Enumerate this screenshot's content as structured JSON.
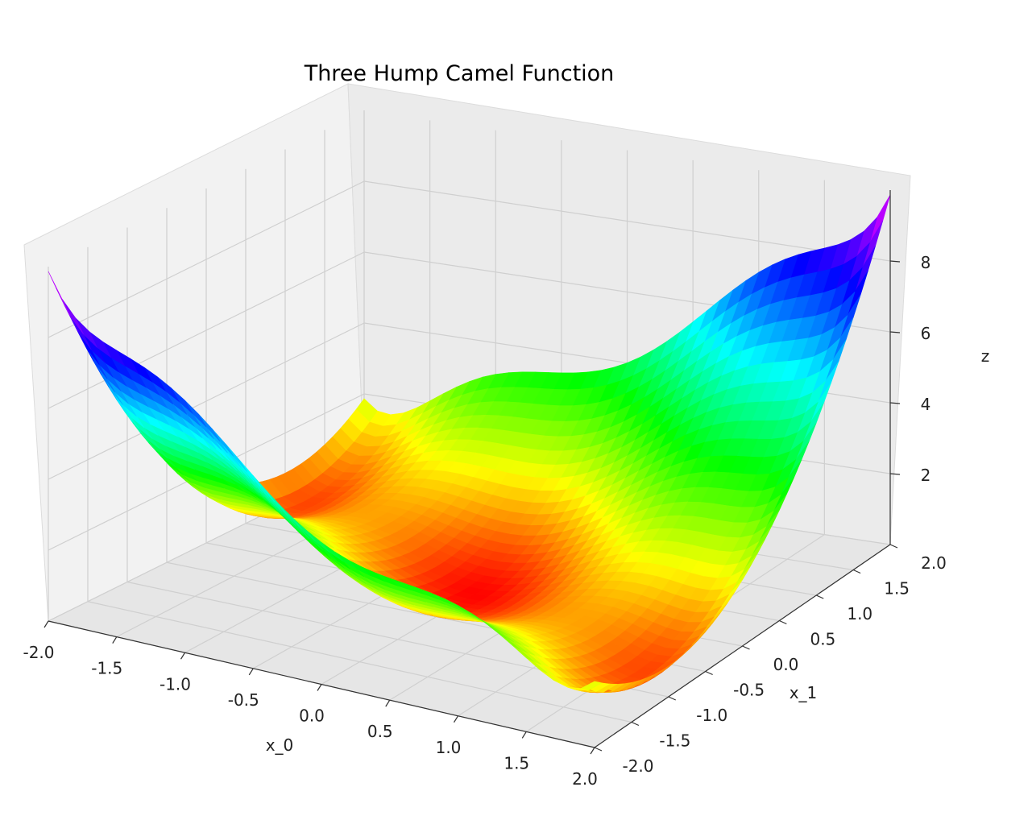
{
  "chart_data": {
    "type": "surface",
    "title": "Three Hump Camel Function",
    "function": "z = 2*x_0^2 - 1.05*x_0^4 + x_0^6/6 + x_0*x_1 + x_1^2",
    "x": {
      "label": "x_0",
      "range": [
        -2.0,
        2.0
      ],
      "ticks": [
        "-2.0",
        "-1.5",
        "-1.0",
        "-0.5",
        "0.0",
        "0.5",
        "1.0",
        "1.5",
        "2.0"
      ]
    },
    "y": {
      "label": "x_1",
      "range": [
        -2.0,
        2.0
      ],
      "ticks": [
        "-2.0",
        "-1.5",
        "-1.0",
        "-0.5",
        "0.0",
        "0.5",
        "1.0",
        "1.5",
        "2.0"
      ]
    },
    "z": {
      "label": "z",
      "ticks": [
        "2",
        "4",
        "6",
        "8"
      ]
    },
    "colormap": "gist_rainbow (low = red, high = magenta)",
    "grid": true
  }
}
